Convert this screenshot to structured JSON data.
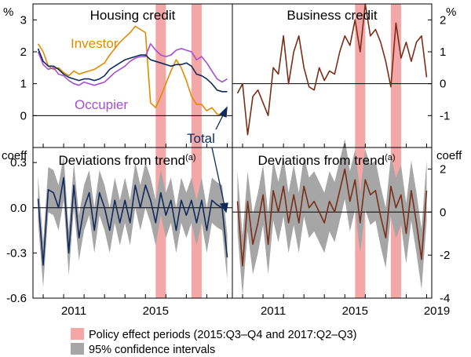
{
  "legend": {
    "policy": {
      "label": "Policy effect periods (2015:Q3–Q4 and 2017:Q2–Q3)",
      "color": "#f4a7a7"
    },
    "ci": {
      "label": "95% confidence intervals",
      "color": "#a6a6a6"
    }
  },
  "colors": {
    "total": "#0e2a5c",
    "investor": "#e38b00",
    "occupier": "#a64fd2",
    "business": "#7a2e18",
    "policy": "#f4a7a7",
    "ci": "#a6a6a6"
  },
  "chart_data": [
    {
      "type": "line",
      "panel": "top-left",
      "title": "Housing credit",
      "ylabel": "%",
      "ylim": [
        -1,
        3.5
      ],
      "yticks": [
        "3",
        "2",
        "1",
        "0"
      ],
      "x": [
        2009.75,
        2010.0,
        2010.25,
        2010.5,
        2010.75,
        2011.0,
        2011.25,
        2011.5,
        2011.75,
        2012.0,
        2012.25,
        2012.5,
        2012.75,
        2013.0,
        2013.25,
        2013.5,
        2013.75,
        2014.0,
        2014.25,
        2014.5,
        2014.75,
        2015.0,
        2015.25,
        2015.5,
        2015.75,
        2016.0,
        2016.25,
        2016.5,
        2016.75,
        2017.0,
        2017.25,
        2017.5,
        2017.75,
        2018.0,
        2018.25,
        2018.5,
        2018.75,
        2019.0
      ],
      "series": [
        {
          "name": "Investor",
          "values": [
            2.25,
            2.0,
            1.55,
            1.45,
            1.5,
            1.35,
            1.25,
            1.4,
            1.3,
            1.35,
            1.4,
            1.45,
            1.55,
            1.65,
            1.9,
            2.1,
            2.3,
            2.45,
            2.6,
            2.8,
            2.7,
            2.6,
            0.4,
            0.25,
            0.6,
            1.0,
            1.4,
            1.75,
            1.5,
            1.1,
            0.6,
            0.35,
            0.35,
            0.15,
            0.25,
            0.05,
            0.0,
            0.0
          ]
        },
        {
          "name": "Occupier",
          "values": [
            2.0,
            1.6,
            1.45,
            1.5,
            1.3,
            1.25,
            1.1,
            1.0,
            0.95,
            1.05,
            1.0,
            0.95,
            1.0,
            1.05,
            1.2,
            1.35,
            1.45,
            1.55,
            1.7,
            1.8,
            1.85,
            1.85,
            2.25,
            2.05,
            1.9,
            1.85,
            1.9,
            2.05,
            2.1,
            2.05,
            2.0,
            1.75,
            1.85,
            1.65,
            1.4,
            1.15,
            1.05,
            1.15
          ]
        },
        {
          "name": "Total",
          "values": [
            2.1,
            1.7,
            1.55,
            1.55,
            1.45,
            1.3,
            1.2,
            1.15,
            1.1,
            1.15,
            1.15,
            1.1,
            1.15,
            1.25,
            1.45,
            1.55,
            1.65,
            1.75,
            1.8,
            1.85,
            1.9,
            1.9,
            1.75,
            1.7,
            1.65,
            1.6,
            1.55,
            1.6,
            1.6,
            1.65,
            1.55,
            1.3,
            1.25,
            1.15,
            1.0,
            0.8,
            0.75,
            0.75
          ]
        }
      ],
      "annotations": [
        "Investor",
        "Occupier",
        "Total"
      ]
    },
    {
      "type": "line",
      "panel": "top-right",
      "title": "Business credit",
      "ylabel": "%",
      "ylim": [
        -2,
        2.5
      ],
      "yticks": [
        "2",
        "1",
        "0",
        "-1"
      ],
      "x": [
        2009.75,
        2010.0,
        2010.25,
        2010.5,
        2010.75,
        2011.0,
        2011.25,
        2011.5,
        2011.75,
        2012.0,
        2012.25,
        2012.5,
        2012.75,
        2013.0,
        2013.25,
        2013.5,
        2013.75,
        2014.0,
        2014.25,
        2014.5,
        2014.75,
        2015.0,
        2015.25,
        2015.5,
        2015.75,
        2016.0,
        2016.25,
        2016.5,
        2016.75,
        2017.0,
        2017.25,
        2017.5,
        2017.75,
        2018.0,
        2018.25,
        2018.5,
        2018.75,
        2019.0
      ],
      "series": [
        {
          "name": "Business credit",
          "values": [
            -0.3,
            0.0,
            -1.6,
            -0.4,
            -0.2,
            -0.6,
            -1.0,
            0.5,
            0.3,
            1.5,
            0.0,
            1.0,
            1.5,
            0.5,
            -0.1,
            -0.2,
            0.5,
            0.1,
            0.4,
            0.3,
            1.0,
            1.5,
            1.2,
            2.0,
            1.0,
            2.5,
            1.5,
            1.7,
            1.3,
            0.7,
            -0.1,
            1.9,
            0.8,
            1.3,
            0.7,
            1.3,
            1.5,
            0.2
          ]
        }
      ]
    },
    {
      "type": "line",
      "panel": "bottom-left",
      "title": "Deviations from trend",
      "title_sup": "(a)",
      "ylabel": "coeff",
      "ylim": [
        -0.6,
        0.4
      ],
      "yticks": [
        "0.3",
        "0.0",
        "-0.3",
        "-0.6"
      ],
      "x": [
        2009.75,
        2010.0,
        2010.25,
        2010.5,
        2010.75,
        2011.0,
        2011.25,
        2011.5,
        2011.75,
        2012.0,
        2012.25,
        2012.5,
        2012.75,
        2013.0,
        2013.25,
        2013.5,
        2013.75,
        2014.0,
        2014.25,
        2014.5,
        2014.75,
        2015.0,
        2015.25,
        2015.5,
        2015.75,
        2016.0,
        2016.25,
        2016.5,
        2016.75,
        2017.0,
        2017.25,
        2017.5,
        2017.75,
        2018.0,
        2018.25,
        2018.5,
        2018.75,
        2019.0
      ],
      "series": [
        {
          "name": "Total",
          "values": [
            0.06,
            -0.38,
            0.12,
            0.1,
            0.0,
            0.2,
            -0.3,
            0.15,
            -0.2,
            0.0,
            0.1,
            -0.15,
            0.1,
            0.0,
            -0.15,
            0.05,
            -0.1,
            0.05,
            -0.1,
            0.15,
            0.0,
            0.15,
            0.05,
            -0.1,
            0.1,
            -0.05,
            0.05,
            -0.15,
            0.05,
            -0.05,
            0.05,
            -0.1,
            0.05,
            -0.15,
            0.05,
            0.02,
            0.0,
            -0.33
          ],
          "ci_half_width": 0.15
        }
      ]
    },
    {
      "type": "line",
      "panel": "bottom-right",
      "title": "Deviations from trend",
      "title_sup": "(a)",
      "ylabel": "coeff",
      "ylim": [
        -4,
        3
      ],
      "yticks": [
        "2",
        "0",
        "-2",
        "-4"
      ],
      "x": [
        2009.75,
        2010.0,
        2010.25,
        2010.5,
        2010.75,
        2011.0,
        2011.25,
        2011.5,
        2011.75,
        2012.0,
        2012.25,
        2012.5,
        2012.75,
        2013.0,
        2013.25,
        2013.5,
        2013.75,
        2014.0,
        2014.25,
        2014.5,
        2014.75,
        2015.0,
        2015.25,
        2015.5,
        2015.75,
        2016.0,
        2016.25,
        2016.5,
        2016.75,
        2017.0,
        2017.25,
        2017.5,
        2017.75,
        2018.0,
        2018.25,
        2018.5,
        2018.75,
        2019.0
      ],
      "series": [
        {
          "name": "Business credit",
          "values": [
            0.5,
            -2.5,
            0.5,
            -1.5,
            -0.5,
            0.8,
            -1.5,
            1.0,
            0.0,
            1.2,
            -0.5,
            0.8,
            -0.5,
            1.2,
            0.2,
            0.5,
            0.0,
            -0.5,
            0.5,
            0.0,
            1.0,
            2.0,
            0.5,
            1.5,
            -0.5,
            1.5,
            0.8,
            1.0,
            -0.2,
            -1.2,
            1.2,
            0.2,
            0.8,
            -1.0,
            1.0,
            -0.5,
            -2.2,
            1.0
          ],
          "ci_half_width": 1.4
        }
      ]
    }
  ],
  "xticks": [
    "2011",
    "2015",
    "2019"
  ],
  "policy_periods": [
    [
      2015.5,
      2016.0
    ],
    [
      2017.25,
      2017.75
    ]
  ]
}
